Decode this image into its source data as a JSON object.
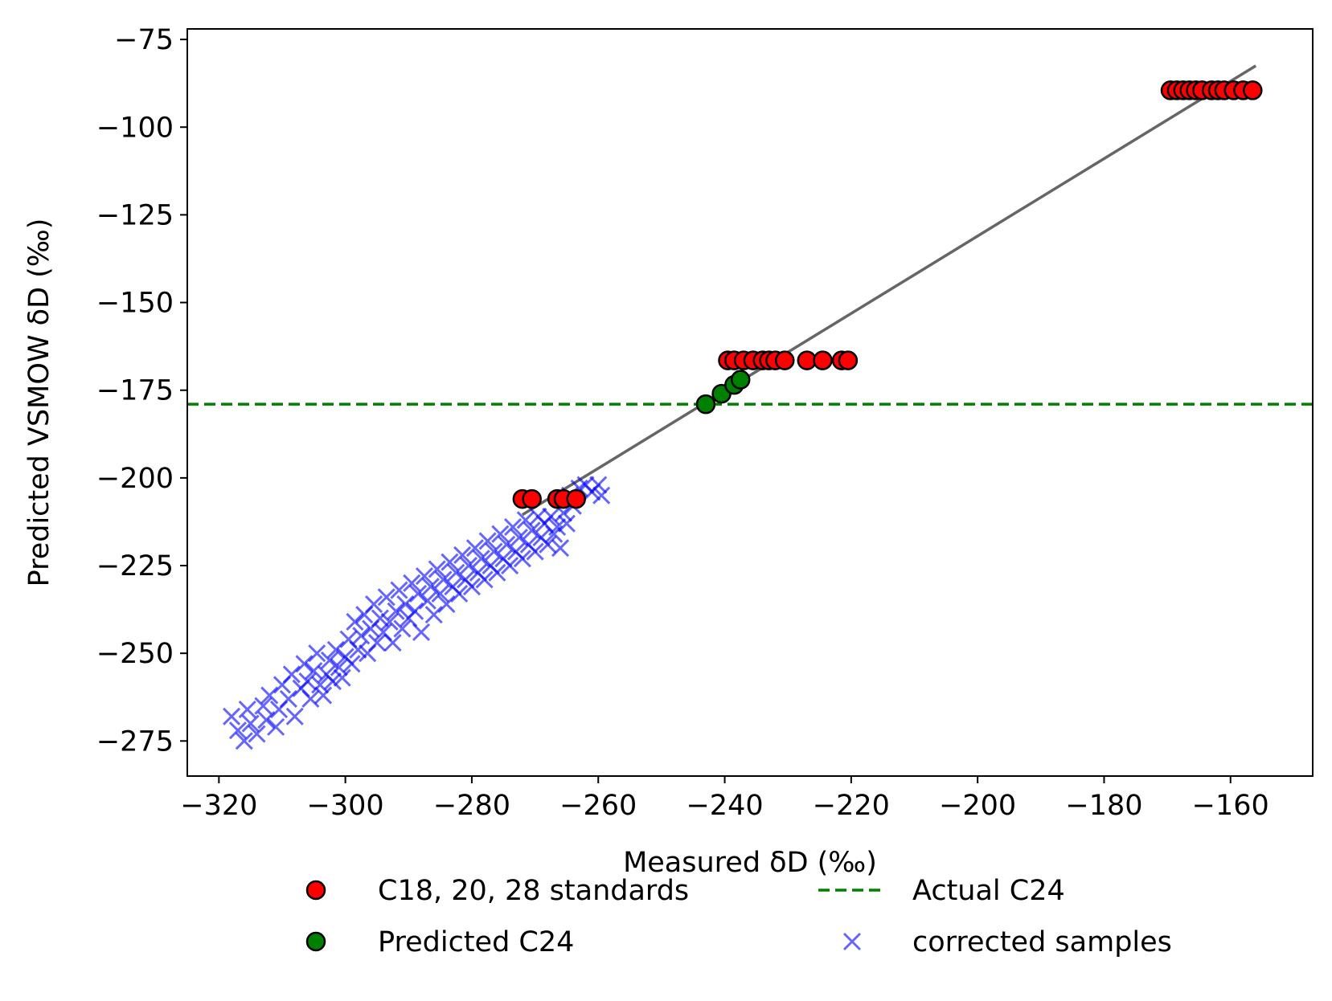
{
  "chart_data": {
    "type": "scatter",
    "title": "",
    "xlabel": "Measured δD (‰)",
    "ylabel": "Predicted VSMOW δD (‰)",
    "xlim": [
      -325,
      -147
    ],
    "ylim": [
      -285,
      -72
    ],
    "x_ticks": [
      -320,
      -300,
      -280,
      -260,
      -240,
      -220,
      -200,
      -180,
      -160
    ],
    "y_ticks": [
      -275,
      -250,
      -225,
      -200,
      -175,
      -150,
      -125,
      -100,
      -75
    ],
    "grid": false,
    "legend_position": "below plot, two columns",
    "colors": {
      "standards": "#ff0000",
      "predicted": "#008000",
      "actual_line": "#008000",
      "samples": "#0000ff",
      "fit_line": "#666666"
    },
    "fit_line": {
      "x": [
        -272,
        -156
      ],
      "y": [
        -210.5,
        -82.5
      ]
    },
    "reference_line": {
      "name": "Actual C24",
      "y": -179
    },
    "series": [
      {
        "name": "C18, 20, 28 standards",
        "marker": "circle",
        "points": [
          [
            -169.5,
            -89.5
          ],
          [
            -168.5,
            -89.5
          ],
          [
            -167.5,
            -89.5
          ],
          [
            -166.5,
            -89.5
          ],
          [
            -165.5,
            -89.5
          ],
          [
            -164.5,
            -89.5
          ],
          [
            -163,
            -89.5
          ],
          [
            -162,
            -89.5
          ],
          [
            -161,
            -89.5
          ],
          [
            -159.5,
            -89.5
          ],
          [
            -158,
            -89.5
          ],
          [
            -156.5,
            -89.5
          ],
          [
            -239.5,
            -166.5
          ],
          [
            -238.5,
            -166.5
          ],
          [
            -237,
            -166.5
          ],
          [
            -235.5,
            -166.5
          ],
          [
            -234,
            -166.5
          ],
          [
            -233,
            -166.5
          ],
          [
            -232,
            -166.5
          ],
          [
            -230.5,
            -166.5
          ],
          [
            -227,
            -166.5
          ],
          [
            -224.5,
            -166.5
          ],
          [
            -221.5,
            -166.5
          ],
          [
            -220.5,
            -166.5
          ],
          [
            -272,
            -206
          ],
          [
            -270.5,
            -206
          ],
          [
            -266.5,
            -206
          ],
          [
            -265.5,
            -206
          ],
          [
            -263.5,
            -206
          ]
        ]
      },
      {
        "name": "Predicted C24",
        "marker": "circle",
        "points": [
          [
            -243,
            -179
          ],
          [
            -240.5,
            -176
          ],
          [
            -238.5,
            -173.5
          ],
          [
            -237.5,
            -172
          ]
        ]
      },
      {
        "name": "corrected samples",
        "marker": "x",
        "points": [
          [
            -318,
            -268
          ],
          [
            -317,
            -272
          ],
          [
            -316,
            -275
          ],
          [
            -315.5,
            -266
          ],
          [
            -315,
            -270
          ],
          [
            -314,
            -273
          ],
          [
            -313,
            -265
          ],
          [
            -312.5,
            -269
          ],
          [
            -312,
            -262
          ],
          [
            -311,
            -271
          ],
          [
            -310.5,
            -266
          ],
          [
            -310,
            -259
          ],
          [
            -309,
            -263
          ],
          [
            -308.5,
            -256
          ],
          [
            -308,
            -268
          ],
          [
            -307,
            -260
          ],
          [
            -306.5,
            -253
          ],
          [
            -306,
            -258
          ],
          [
            -305.5,
            -263
          ],
          [
            -305,
            -255
          ],
          [
            -304.5,
            -250
          ],
          [
            -304,
            -259
          ],
          [
            -303.5,
            -262
          ],
          [
            -303,
            -256
          ],
          [
            -302.5,
            -252
          ],
          [
            -302,
            -258
          ],
          [
            -301.5,
            -249
          ],
          [
            -301,
            -254
          ],
          [
            -300.5,
            -257
          ],
          [
            -300,
            -251
          ],
          [
            -299.5,
            -246
          ],
          [
            -299,
            -253
          ],
          [
            -298.5,
            -241
          ],
          [
            -298,
            -249
          ],
          [
            -297.5,
            -245
          ],
          [
            -297,
            -239
          ],
          [
            -296.5,
            -250
          ],
          [
            -296,
            -243
          ],
          [
            -295.5,
            -236
          ],
          [
            -295,
            -247
          ],
          [
            -294.5,
            -240
          ],
          [
            -294,
            -244
          ],
          [
            -293.5,
            -234
          ],
          [
            -293,
            -241
          ],
          [
            -292.5,
            -247
          ],
          [
            -292,
            -238
          ],
          [
            -291.5,
            -232
          ],
          [
            -291,
            -243
          ],
          [
            -290.5,
            -236
          ],
          [
            -290,
            -240
          ],
          [
            -289.5,
            -230
          ],
          [
            -289,
            -238
          ],
          [
            -288.5,
            -233
          ],
          [
            -288,
            -244
          ],
          [
            -287.5,
            -228
          ],
          [
            -287,
            -235
          ],
          [
            -286.5,
            -231
          ],
          [
            -286,
            -239
          ],
          [
            -285.5,
            -226
          ],
          [
            -285,
            -233
          ],
          [
            -284.5,
            -229
          ],
          [
            -284,
            -236
          ],
          [
            -283.5,
            -224
          ],
          [
            -283,
            -231
          ],
          [
            -282.5,
            -227
          ],
          [
            -282,
            -233
          ],
          [
            -281.5,
            -222
          ],
          [
            -281,
            -229
          ],
          [
            -280.5,
            -225
          ],
          [
            -280,
            -231
          ],
          [
            -279.5,
            -220
          ],
          [
            -279,
            -227
          ],
          [
            -278.5,
            -223
          ],
          [
            -278,
            -229
          ],
          [
            -277.5,
            -218
          ],
          [
            -277,
            -225
          ],
          [
            -276.5,
            -221
          ],
          [
            -276,
            -227
          ],
          [
            -275.5,
            -216
          ],
          [
            -275,
            -223
          ],
          [
            -274.5,
            -219
          ],
          [
            -274,
            -225
          ],
          [
            -273.5,
            -214
          ],
          [
            -273,
            -221
          ],
          [
            -272.5,
            -217
          ],
          [
            -272,
            -223
          ],
          [
            -271.5,
            -212
          ],
          [
            -271,
            -219
          ],
          [
            -270.5,
            -215
          ],
          [
            -270,
            -221
          ],
          [
            -269.5,
            -211
          ],
          [
            -269,
            -217
          ],
          [
            -268.5,
            -213
          ],
          [
            -268,
            -219
          ],
          [
            -267.5,
            -211
          ],
          [
            -267,
            -216
          ],
          [
            -266.5,
            -214
          ],
          [
            -266,
            -220
          ],
          [
            -265.5,
            -210
          ],
          [
            -265,
            -213
          ],
          [
            -264.5,
            -205
          ],
          [
            -264,
            -208
          ],
          [
            -263,
            -203
          ],
          [
            -262,
            -202
          ],
          [
            -261,
            -204
          ],
          [
            -260,
            -202
          ],
          [
            -259.5,
            -205
          ]
        ]
      }
    ],
    "legend": [
      {
        "label": "C18, 20, 28 standards",
        "marker": "circle",
        "color": "#ff0000"
      },
      {
        "label": "Actual C24",
        "marker": "dashed-line",
        "color": "#008000"
      },
      {
        "label": "Predicted C24",
        "marker": "circle",
        "color": "#008000"
      },
      {
        "label": "corrected samples",
        "marker": "x",
        "color": "#0000ff"
      }
    ]
  }
}
